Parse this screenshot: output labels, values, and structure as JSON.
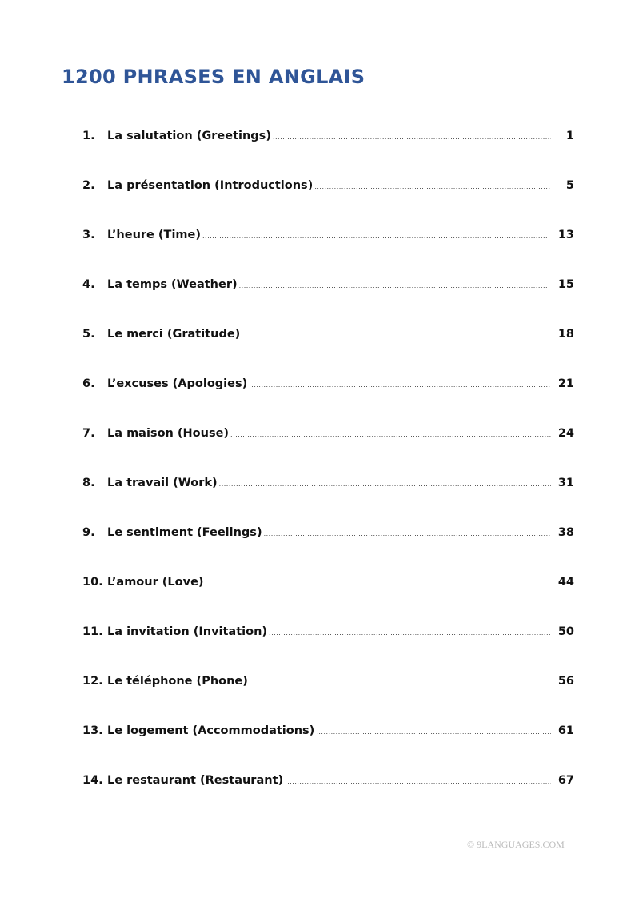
{
  "title": "1200 PHRASES EN ANGLAIS",
  "toc": [
    {
      "num": "1.",
      "text": "La salutation (Greetings)",
      "page": "1"
    },
    {
      "num": "2.",
      "text": "La présentation (Introductions)",
      "page": "5"
    },
    {
      "num": "3.",
      "text": "L’heure (Time)",
      "page": "13"
    },
    {
      "num": "4.",
      "text": "La temps (Weather)",
      "page": "15"
    },
    {
      "num": "5.",
      "text": "Le merci (Gratitude)",
      "page": "18"
    },
    {
      "num": "6.",
      "text": "L’excuses (Apologies)",
      "page": "21"
    },
    {
      "num": "7.",
      "text": "La maison (House)",
      "page": "24"
    },
    {
      "num": "8.",
      "text": "La travail (Work)",
      "page": "31"
    },
    {
      "num": "9.",
      "text": "Le sentiment (Feelings)",
      "page": "38"
    },
    {
      "num": "10.",
      "text": "L’amour (Love)",
      "page": "44"
    },
    {
      "num": "11.",
      "text": "La invitation (Invitation)",
      "page": "50"
    },
    {
      "num": "12.",
      "text": "Le téléphone (Phone)",
      "page": "56"
    },
    {
      "num": "13.",
      "text": "Le logement (Accommodations)",
      "page": "61"
    },
    {
      "num": "14.",
      "text": "Le restaurant (Restaurant)",
      "page": "67"
    }
  ],
  "footer": "© 9LANGUAGES.COM",
  "colors": {
    "title": "#2f5597"
  }
}
